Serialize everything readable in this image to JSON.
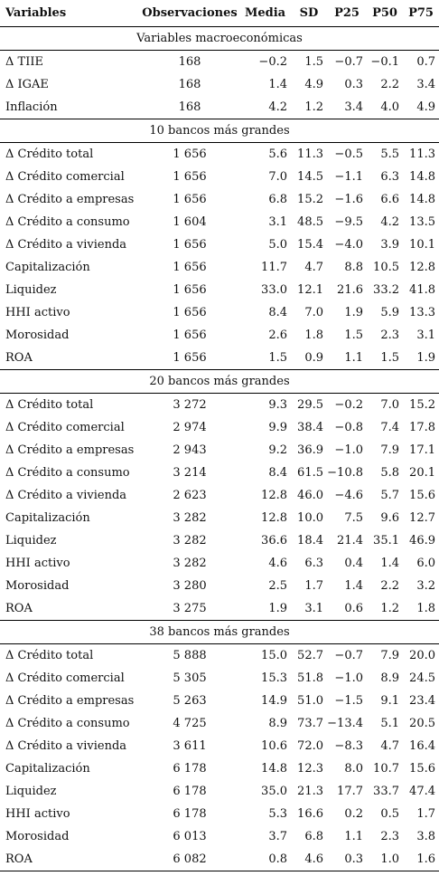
{
  "headers": [
    "Variables",
    "Observaciones",
    "Media",
    "SD",
    "P25",
    "P50",
    "P75"
  ],
  "sections": [
    {
      "title": "Variables macroeconómicas",
      "rows": [
        [
          "Δ TIIE",
          "168",
          "−0.2",
          "1.5",
          "−0.7",
          "−0.1",
          "0.7"
        ],
        [
          "Δ IGAE",
          "168",
          "1.4",
          "4.9",
          "0.3",
          "2.2",
          "3.4"
        ],
        [
          "Inflación",
          "168",
          "4.2",
          "1.2",
          "3.4",
          "4.0",
          "4.9"
        ]
      ]
    },
    {
      "title": "10 bancos más grandes",
      "rows": [
        [
          "Δ Crédito total",
          "1 656",
          "5.6",
          "11.3",
          "−0.5",
          "5.5",
          "11.3"
        ],
        [
          "Δ Crédito comercial",
          "1 656",
          "7.0",
          "14.5",
          "−1.1",
          "6.3",
          "14.8"
        ],
        [
          "Δ Crédito a empresas",
          "1 656",
          "6.8",
          "15.2",
          "−1.6",
          "6.6",
          "14.8"
        ],
        [
          "Δ Crédito a consumo",
          "1 604",
          "3.1",
          "48.5",
          "−9.5",
          "4.2",
          "13.5"
        ],
        [
          "Δ Crédito a vivienda",
          "1 656",
          "5.0",
          "15.4",
          "−4.0",
          "3.9",
          "10.1"
        ],
        [
          "Capitalización",
          "1 656",
          "11.7",
          "4.7",
          "8.8",
          "10.5",
          "12.8"
        ],
        [
          "Liquidez",
          "1 656",
          "33.0",
          "12.1",
          "21.6",
          "33.2",
          "41.8"
        ],
        [
          "HHI activo",
          "1 656",
          "8.4",
          "7.0",
          "1.9",
          "5.9",
          "13.3"
        ],
        [
          "Morosidad",
          "1 656",
          "2.6",
          "1.8",
          "1.5",
          "2.3",
          "3.1"
        ],
        [
          "ROA",
          "1 656",
          "1.5",
          "0.9",
          "1.1",
          "1.5",
          "1.9"
        ]
      ]
    },
    {
      "title": "20 bancos más grandes",
      "rows": [
        [
          "Δ Crédito total",
          "3 272",
          "9.3",
          "29.5",
          "−0.2",
          "7.0",
          "15.2"
        ],
        [
          "Δ Crédito comercial",
          "2 974",
          "9.9",
          "38.4",
          "−0.8",
          "7.4",
          "17.8"
        ],
        [
          "Δ Crédito a empresas",
          "2 943",
          "9.2",
          "36.9",
          "−1.0",
          "7.9",
          "17.1"
        ],
        [
          "Δ Crédito a consumo",
          "3 214",
          "8.4",
          "61.5",
          "−10.8",
          "5.8",
          "20.1"
        ],
        [
          "Δ Crédito a vivienda",
          "2 623",
          "12.8",
          "46.0",
          "−4.6",
          "5.7",
          "15.6"
        ],
        [
          "Capitalización",
          "3 282",
          "12.8",
          "10.0",
          "7.5",
          "9.6",
          "12.7"
        ],
        [
          "Liquidez",
          "3 282",
          "36.6",
          "18.4",
          "21.4",
          "35.1",
          "46.9"
        ],
        [
          "HHI activo",
          "3 282",
          "4.6",
          "6.3",
          "0.4",
          "1.4",
          "6.0"
        ],
        [
          "Morosidad",
          "3 280",
          "2.5",
          "1.7",
          "1.4",
          "2.2",
          "3.2"
        ],
        [
          "ROA",
          "3 275",
          "1.9",
          "3.1",
          "0.6",
          "1.2",
          "1.8"
        ]
      ]
    },
    {
      "title": "38 bancos más grandes",
      "rows": [
        [
          "Δ Crédito total",
          "5 888",
          "15.0",
          "52.7",
          "−0.7",
          "7.9",
          "20.0"
        ],
        [
          "Δ Crédito comercial",
          "5 305",
          "15.3",
          "51.8",
          "−1.0",
          "8.9",
          "24.5"
        ],
        [
          "Δ Crédito a empresas",
          "5 263",
          "14.9",
          "51.0",
          "−1.5",
          "9.1",
          "23.4"
        ],
        [
          "Δ Crédito a consumo",
          "4 725",
          "8.9",
          "73.7",
          "−13.4",
          "5.1",
          "20.5"
        ],
        [
          "Δ Crédito a vivienda",
          "3 611",
          "10.6",
          "72.0",
          "−8.3",
          "4.7",
          "16.4"
        ],
        [
          "Capitalización",
          "6 178",
          "14.8",
          "12.3",
          "8.0",
          "10.7",
          "15.6"
        ],
        [
          "Liquidez",
          "6 178",
          "35.0",
          "21.3",
          "17.7",
          "33.7",
          "47.4"
        ],
        [
          "HHI activo",
          "6 178",
          "5.3",
          "16.6",
          "0.2",
          "0.5",
          "1.7"
        ],
        [
          "Morosidad",
          "6 013",
          "3.7",
          "6.8",
          "1.1",
          "2.3",
          "3.8"
        ],
        [
          "ROA",
          "6 082",
          "0.8",
          "4.6",
          "0.3",
          "1.0",
          "1.6"
        ]
      ]
    }
  ]
}
